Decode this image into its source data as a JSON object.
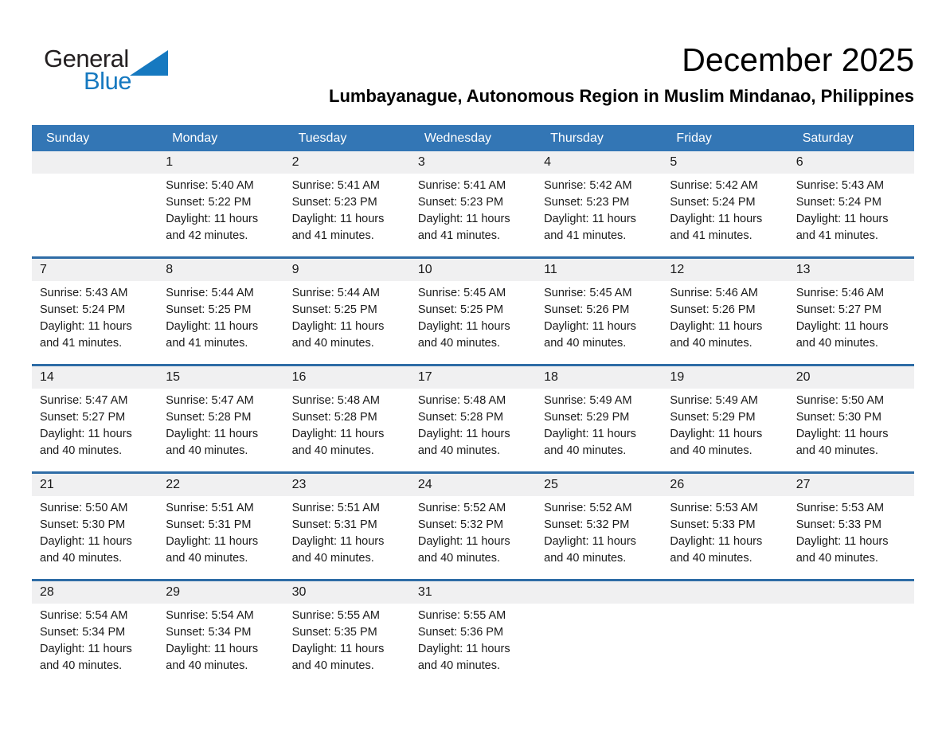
{
  "logo": {
    "general": "General",
    "blue": "Blue"
  },
  "header": {
    "month_title": "December 2025",
    "location": "Lumbayanague, Autonomous Region in Muslim Mindanao, Philippines"
  },
  "colors": {
    "header_blue": "#3376B5",
    "week_border_blue": "#2E6CA6",
    "strip_gray": "#F0F0F1",
    "logo_blue": "#1679C0",
    "text_dark": "#1A1A1A"
  },
  "calendar": {
    "weekdays": [
      "Sunday",
      "Monday",
      "Tuesday",
      "Wednesday",
      "Thursday",
      "Friday",
      "Saturday"
    ],
    "weeks": [
      {
        "cells": [
          {
            "day": "",
            "lines": []
          },
          {
            "day": "1",
            "lines": [
              "Sunrise: 5:40 AM",
              "Sunset: 5:22 PM",
              "Daylight: 11 hours",
              "and 42 minutes."
            ]
          },
          {
            "day": "2",
            "lines": [
              "Sunrise: 5:41 AM",
              "Sunset: 5:23 PM",
              "Daylight: 11 hours",
              "and 41 minutes."
            ]
          },
          {
            "day": "3",
            "lines": [
              "Sunrise: 5:41 AM",
              "Sunset: 5:23 PM",
              "Daylight: 11 hours",
              "and 41 minutes."
            ]
          },
          {
            "day": "4",
            "lines": [
              "Sunrise: 5:42 AM",
              "Sunset: 5:23 PM",
              "Daylight: 11 hours",
              "and 41 minutes."
            ]
          },
          {
            "day": "5",
            "lines": [
              "Sunrise: 5:42 AM",
              "Sunset: 5:24 PM",
              "Daylight: 11 hours",
              "and 41 minutes."
            ]
          },
          {
            "day": "6",
            "lines": [
              "Sunrise: 5:43 AM",
              "Sunset: 5:24 PM",
              "Daylight: 11 hours",
              "and 41 minutes."
            ]
          }
        ]
      },
      {
        "cells": [
          {
            "day": "7",
            "lines": [
              "Sunrise: 5:43 AM",
              "Sunset: 5:24 PM",
              "Daylight: 11 hours",
              "and 41 minutes."
            ]
          },
          {
            "day": "8",
            "lines": [
              "Sunrise: 5:44 AM",
              "Sunset: 5:25 PM",
              "Daylight: 11 hours",
              "and 41 minutes."
            ]
          },
          {
            "day": "9",
            "lines": [
              "Sunrise: 5:44 AM",
              "Sunset: 5:25 PM",
              "Daylight: 11 hours",
              "and 40 minutes."
            ]
          },
          {
            "day": "10",
            "lines": [
              "Sunrise: 5:45 AM",
              "Sunset: 5:25 PM",
              "Daylight: 11 hours",
              "and 40 minutes."
            ]
          },
          {
            "day": "11",
            "lines": [
              "Sunrise: 5:45 AM",
              "Sunset: 5:26 PM",
              "Daylight: 11 hours",
              "and 40 minutes."
            ]
          },
          {
            "day": "12",
            "lines": [
              "Sunrise: 5:46 AM",
              "Sunset: 5:26 PM",
              "Daylight: 11 hours",
              "and 40 minutes."
            ]
          },
          {
            "day": "13",
            "lines": [
              "Sunrise: 5:46 AM",
              "Sunset: 5:27 PM",
              "Daylight: 11 hours",
              "and 40 minutes."
            ]
          }
        ]
      },
      {
        "cells": [
          {
            "day": "14",
            "lines": [
              "Sunrise: 5:47 AM",
              "Sunset: 5:27 PM",
              "Daylight: 11 hours",
              "and 40 minutes."
            ]
          },
          {
            "day": "15",
            "lines": [
              "Sunrise: 5:47 AM",
              "Sunset: 5:28 PM",
              "Daylight: 11 hours",
              "and 40 minutes."
            ]
          },
          {
            "day": "16",
            "lines": [
              "Sunrise: 5:48 AM",
              "Sunset: 5:28 PM",
              "Daylight: 11 hours",
              "and 40 minutes."
            ]
          },
          {
            "day": "17",
            "lines": [
              "Sunrise: 5:48 AM",
              "Sunset: 5:28 PM",
              "Daylight: 11 hours",
              "and 40 minutes."
            ]
          },
          {
            "day": "18",
            "lines": [
              "Sunrise: 5:49 AM",
              "Sunset: 5:29 PM",
              "Daylight: 11 hours",
              "and 40 minutes."
            ]
          },
          {
            "day": "19",
            "lines": [
              "Sunrise: 5:49 AM",
              "Sunset: 5:29 PM",
              "Daylight: 11 hours",
              "and 40 minutes."
            ]
          },
          {
            "day": "20",
            "lines": [
              "Sunrise: 5:50 AM",
              "Sunset: 5:30 PM",
              "Daylight: 11 hours",
              "and 40 minutes."
            ]
          }
        ]
      },
      {
        "cells": [
          {
            "day": "21",
            "lines": [
              "Sunrise: 5:50 AM",
              "Sunset: 5:30 PM",
              "Daylight: 11 hours",
              "and 40 minutes."
            ]
          },
          {
            "day": "22",
            "lines": [
              "Sunrise: 5:51 AM",
              "Sunset: 5:31 PM",
              "Daylight: 11 hours",
              "and 40 minutes."
            ]
          },
          {
            "day": "23",
            "lines": [
              "Sunrise: 5:51 AM",
              "Sunset: 5:31 PM",
              "Daylight: 11 hours",
              "and 40 minutes."
            ]
          },
          {
            "day": "24",
            "lines": [
              "Sunrise: 5:52 AM",
              "Sunset: 5:32 PM",
              "Daylight: 11 hours",
              "and 40 minutes."
            ]
          },
          {
            "day": "25",
            "lines": [
              "Sunrise: 5:52 AM",
              "Sunset: 5:32 PM",
              "Daylight: 11 hours",
              "and 40 minutes."
            ]
          },
          {
            "day": "26",
            "lines": [
              "Sunrise: 5:53 AM",
              "Sunset: 5:33 PM",
              "Daylight: 11 hours",
              "and 40 minutes."
            ]
          },
          {
            "day": "27",
            "lines": [
              "Sunrise: 5:53 AM",
              "Sunset: 5:33 PM",
              "Daylight: 11 hours",
              "and 40 minutes."
            ]
          }
        ]
      },
      {
        "cells": [
          {
            "day": "28",
            "lines": [
              "Sunrise: 5:54 AM",
              "Sunset: 5:34 PM",
              "Daylight: 11 hours",
              "and 40 minutes."
            ]
          },
          {
            "day": "29",
            "lines": [
              "Sunrise: 5:54 AM",
              "Sunset: 5:34 PM",
              "Daylight: 11 hours",
              "and 40 minutes."
            ]
          },
          {
            "day": "30",
            "lines": [
              "Sunrise: 5:55 AM",
              "Sunset: 5:35 PM",
              "Daylight: 11 hours",
              "and 40 minutes."
            ]
          },
          {
            "day": "31",
            "lines": [
              "Sunrise: 5:55 AM",
              "Sunset: 5:36 PM",
              "Daylight: 11 hours",
              "and 40 minutes."
            ]
          },
          {
            "day": "",
            "lines": []
          },
          {
            "day": "",
            "lines": []
          },
          {
            "day": "",
            "lines": []
          }
        ]
      }
    ]
  }
}
